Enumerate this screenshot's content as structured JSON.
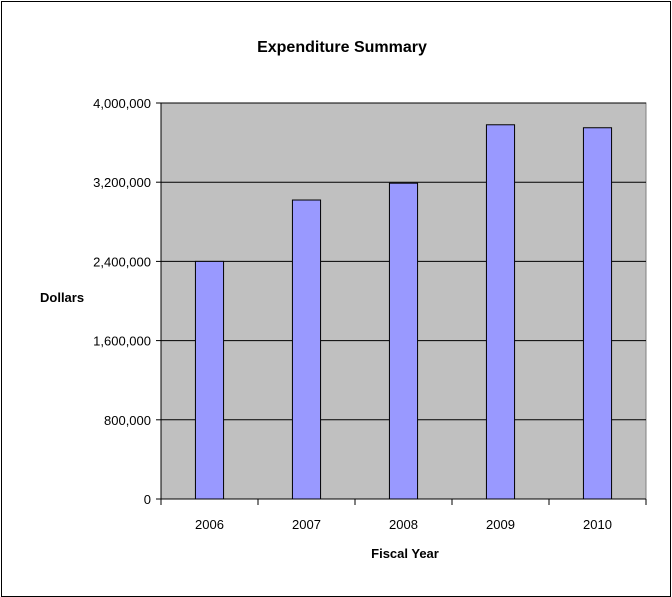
{
  "chart_data": {
    "type": "bar",
    "title": "Expenditure Summary",
    "xlabel": "Fiscal Year",
    "ylabel": "Dollars",
    "categories": [
      "2006",
      "2007",
      "2008",
      "2009",
      "2010"
    ],
    "values": [
      2400000,
      3020000,
      3190000,
      3780000,
      3750000
    ],
    "ylim": [
      0,
      4000000
    ],
    "yticks": [
      0,
      800000,
      1600000,
      2400000,
      3200000,
      4000000
    ],
    "ytick_labels": [
      "0",
      "800,000",
      "1,600,000",
      "2,400,000",
      "3,200,000",
      "4,000,000"
    ],
    "grid": true,
    "legend": "none",
    "colors": {
      "bar_fill": "#9999ff",
      "plot_background": "#c0c0c0",
      "gridline": "#000000"
    }
  }
}
